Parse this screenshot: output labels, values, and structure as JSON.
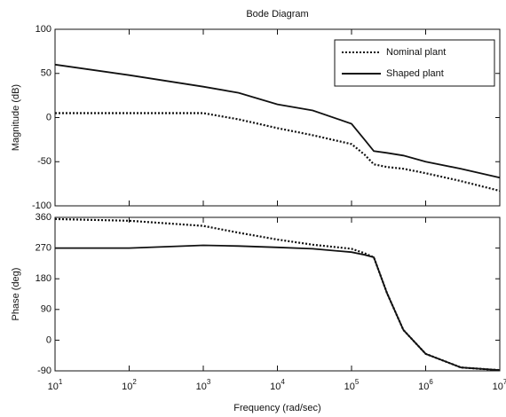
{
  "chart_data": [
    {
      "type": "line",
      "title": "Bode Diagram",
      "ylabel": "Magnitude (dB)",
      "xscale": "log",
      "xlim": [
        10,
        10000000
      ],
      "xticks": [
        10,
        100,
        1000,
        10000,
        100000,
        1000000,
        10000000
      ],
      "ylim": [
        -100,
        100
      ],
      "yticks": [
        -100,
        -50,
        0,
        50,
        100
      ],
      "legend": "upper right",
      "x": [
        10,
        100,
        1000,
        3000,
        10000,
        30000,
        100000,
        150000,
        200000,
        300000,
        500000,
        1000000,
        3000000,
        10000000
      ],
      "series": [
        {
          "name": "Nominal plant",
          "color": "#111111",
          "style": "dotted",
          "values": [
            5,
            5,
            5,
            -2,
            -12,
            -20,
            -30,
            -42,
            -53,
            -56,
            -58,
            -63,
            -72,
            -83
          ]
        },
        {
          "name": "Shaped plant",
          "color": "#111111",
          "style": "solid",
          "values": [
            60,
            48,
            35,
            28,
            15,
            8,
            -7,
            -25,
            -38,
            -40,
            -43,
            -50,
            -58,
            -68
          ]
        }
      ]
    },
    {
      "type": "line",
      "ylabel": "Phase (deg)",
      "xlabel": "Frequency (rad/sec)",
      "xscale": "log",
      "xlim": [
        10,
        10000000
      ],
      "xticks": [
        {
          "value": 10,
          "label": "10^1"
        },
        {
          "value": 100,
          "label": "10^2"
        },
        {
          "value": 1000,
          "label": "10^3"
        },
        {
          "value": 10000,
          "label": "10^4"
        },
        {
          "value": 100000,
          "label": "10^5"
        },
        {
          "value": 1000000,
          "label": "10^6"
        },
        {
          "value": 10000000,
          "label": "10^7"
        }
      ],
      "ylim": [
        -90,
        360
      ],
      "yticks": [
        -90,
        0,
        90,
        180,
        270,
        360
      ],
      "x": [
        10,
        100,
        1000,
        3000,
        10000,
        30000,
        100000,
        150000,
        200000,
        300000,
        500000,
        1000000,
        3000000,
        10000000
      ],
      "series": [
        {
          "name": "Nominal plant",
          "color": "#111111",
          "style": "dotted",
          "values": [
            355,
            350,
            335,
            315,
            295,
            280,
            268,
            255,
            243,
            139,
            30,
            -40,
            -80,
            -88
          ]
        },
        {
          "name": "Shaped plant",
          "color": "#111111",
          "style": "solid",
          "values": [
            270,
            270,
            278,
            276,
            272,
            268,
            258,
            250,
            243,
            139,
            30,
            -40,
            -80,
            -88
          ]
        }
      ]
    }
  ]
}
